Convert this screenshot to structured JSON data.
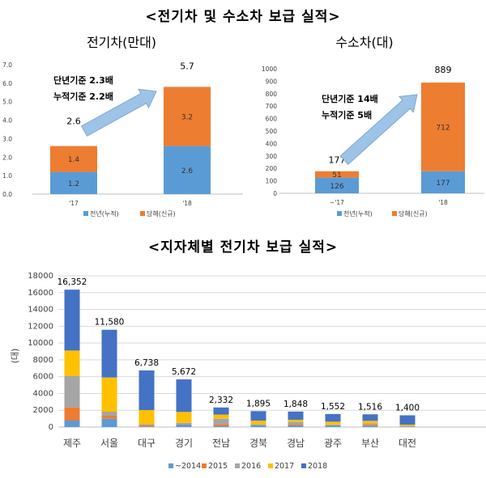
{
  "titles": {
    "top": "<전기차 및 수소차 보급 실적>",
    "bottom": "<지자체별 전기차 보급 실적>"
  },
  "colors": {
    "blue": "#5b9bd5",
    "orange": "#ed7d31",
    "gray": "#a5a5a5",
    "yellow": "#ffc000",
    "darkblue": "#4472c4",
    "arrow": "#9dc3e6"
  },
  "chart_data": [
    {
      "type": "bar",
      "stacked": true,
      "title": "전기차(만대)",
      "categories": [
        "'17",
        "'18"
      ],
      "series": [
        {
          "name": "전년(누적)",
          "values": [
            1.2,
            2.6
          ],
          "labels": [
            "1.2",
            "2.6"
          ]
        },
        {
          "name": "당해(신규)",
          "values": [
            1.4,
            3.2
          ],
          "labels": [
            "1.4",
            "3.2"
          ]
        }
      ],
      "totals": [
        "2.6",
        "5.7"
      ],
      "ylim": [
        0,
        7
      ],
      "yticks": [
        "0.0",
        "1.0",
        "2.0",
        "3.0",
        "4.0",
        "5.0",
        "6.0",
        "7.0"
      ],
      "annotations": [
        "단년기준 2.3배",
        "누적기준 2.2배"
      ],
      "legend": "bottom"
    },
    {
      "type": "bar",
      "stacked": true,
      "title": "수소차(대)",
      "categories": [
        "~'17",
        "'18"
      ],
      "series": [
        {
          "name": "전년(누적)",
          "values": [
            126,
            177
          ],
          "labels": [
            "126",
            "177"
          ]
        },
        {
          "name": "당해(신규)",
          "values": [
            51,
            712
          ],
          "labels": [
            "51",
            "712"
          ]
        }
      ],
      "totals": [
        "177",
        "889"
      ],
      "ylim": [
        0,
        1000
      ],
      "yticks": [
        "0",
        "100",
        "200",
        "300",
        "400",
        "500",
        "600",
        "700",
        "800",
        "900",
        "1000"
      ],
      "annotations": [
        "단년기준 14배",
        "누적기준 5배"
      ],
      "legend": "bottom"
    },
    {
      "type": "bar",
      "stacked": true,
      "title": "",
      "ylabel": "(대)",
      "categories": [
        "제주",
        "서울",
        "대구",
        "경기",
        "전남",
        "경북",
        "경남",
        "광주",
        "부산",
        "대전"
      ],
      "series": [
        {
          "name": "~2014",
          "values": [
            770,
            990,
            60,
            290,
            100,
            200,
            200,
            200,
            100,
            50
          ]
        },
        {
          "name": "2015",
          "values": [
            1570,
            360,
            130,
            60,
            190,
            50,
            150,
            30,
            150,
            20
          ]
        },
        {
          "name": "2016",
          "values": [
            3730,
            480,
            160,
            160,
            700,
            100,
            260,
            50,
            200,
            30
          ]
        },
        {
          "name": "2017",
          "values": [
            3040,
            4070,
            1670,
            1290,
            490,
            420,
            260,
            360,
            290,
            190
          ]
        },
        {
          "name": "2018",
          "values": [
            7242,
            5680,
            4718,
            3872,
            852,
            1125,
            978,
            912,
            776,
            1110
          ]
        }
      ],
      "totals": [
        "16,352",
        "11,580",
        "6,738",
        "5,672",
        "2,332",
        "1,895",
        "1,848",
        "1,552",
        "1,516",
        "1,400"
      ],
      "ylim": [
        0,
        18000
      ],
      "yticks": [
        "0",
        "2000",
        "4000",
        "6000",
        "8000",
        "10000",
        "12000",
        "14000",
        "16000",
        "18000"
      ],
      "grid": true,
      "legend": "bottom"
    }
  ]
}
